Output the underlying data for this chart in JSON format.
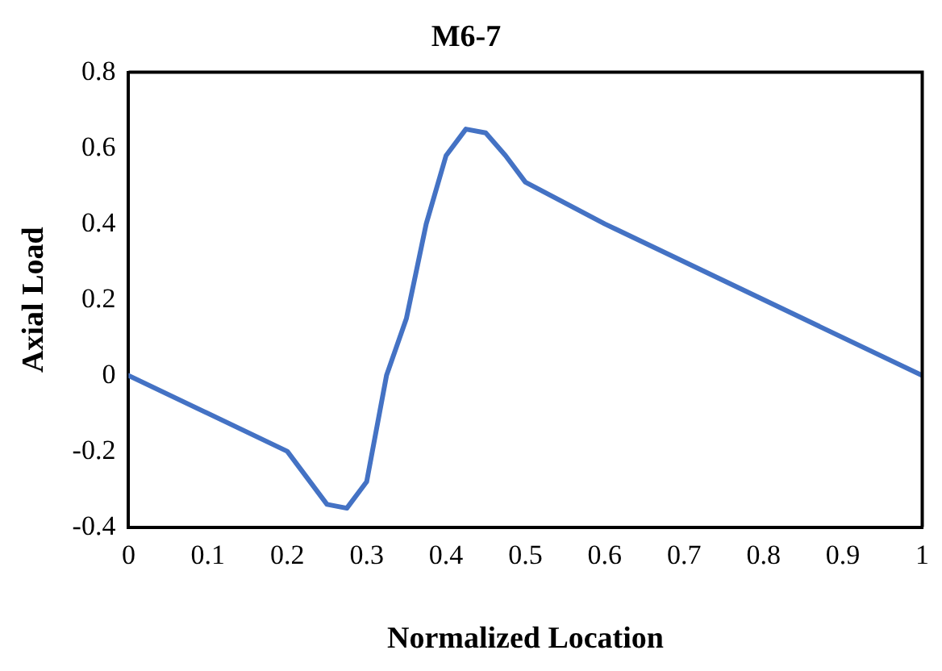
{
  "chart_data": {
    "type": "line",
    "title": "M6-7",
    "xlabel": "Normalized Location",
    "ylabel": "Axial Load",
    "x": [
      0,
      0.2,
      0.25,
      0.275,
      0.3,
      0.325,
      0.35,
      0.375,
      0.4,
      0.425,
      0.45,
      0.475,
      0.5,
      0.6,
      1
    ],
    "series": [
      {
        "color": "#4472c4",
        "values": [
          0,
          -0.2,
          -0.34,
          -0.35,
          -0.28,
          0,
          0.15,
          0.4,
          0.58,
          0.65,
          0.64,
          0.58,
          0.51,
          0.4,
          0
        ]
      }
    ],
    "xlim": [
      0,
      1
    ],
    "xticks": [
      0,
      0.1,
      0.2,
      0.3,
      0.4,
      0.5,
      0.6,
      0.7,
      0.8,
      0.9,
      1
    ],
    "ylim": [
      -0.4,
      0.8
    ],
    "yticks": [
      -0.4,
      -0.2,
      0,
      0.2,
      0.4,
      0.6,
      0.8
    ],
    "grid": false,
    "legend": false,
    "marker": "none",
    "line_style": "solid"
  }
}
